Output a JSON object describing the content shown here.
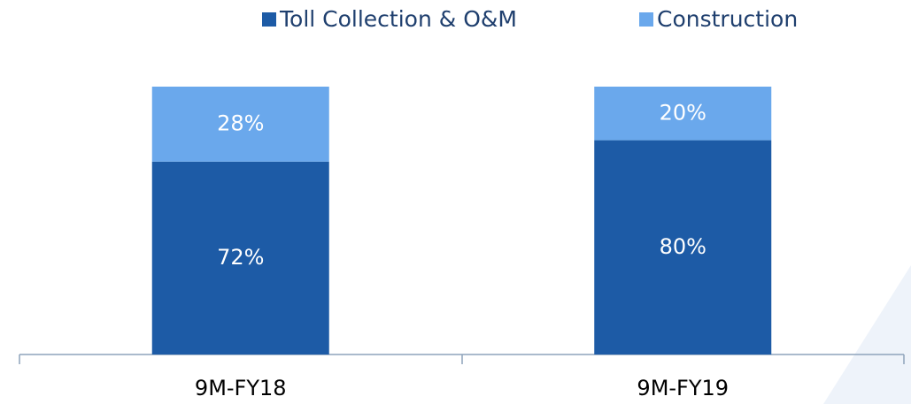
{
  "chart_data": {
    "type": "stacked_bar",
    "categories": [
      "9M-FY18",
      "9M-FY19"
    ],
    "series": [
      {
        "name": "Toll Collection & O&M",
        "color": "#1d5ba6",
        "values": [
          72,
          80
        ],
        "value_labels": [
          "72%",
          "80%"
        ]
      },
      {
        "name": "Construction",
        "color": "#6aa8ec",
        "values": [
          28,
          20
        ],
        "value_labels": [
          "28%",
          "20%"
        ]
      }
    ],
    "ylim": [
      0,
      100
    ],
    "legend": "top"
  }
}
